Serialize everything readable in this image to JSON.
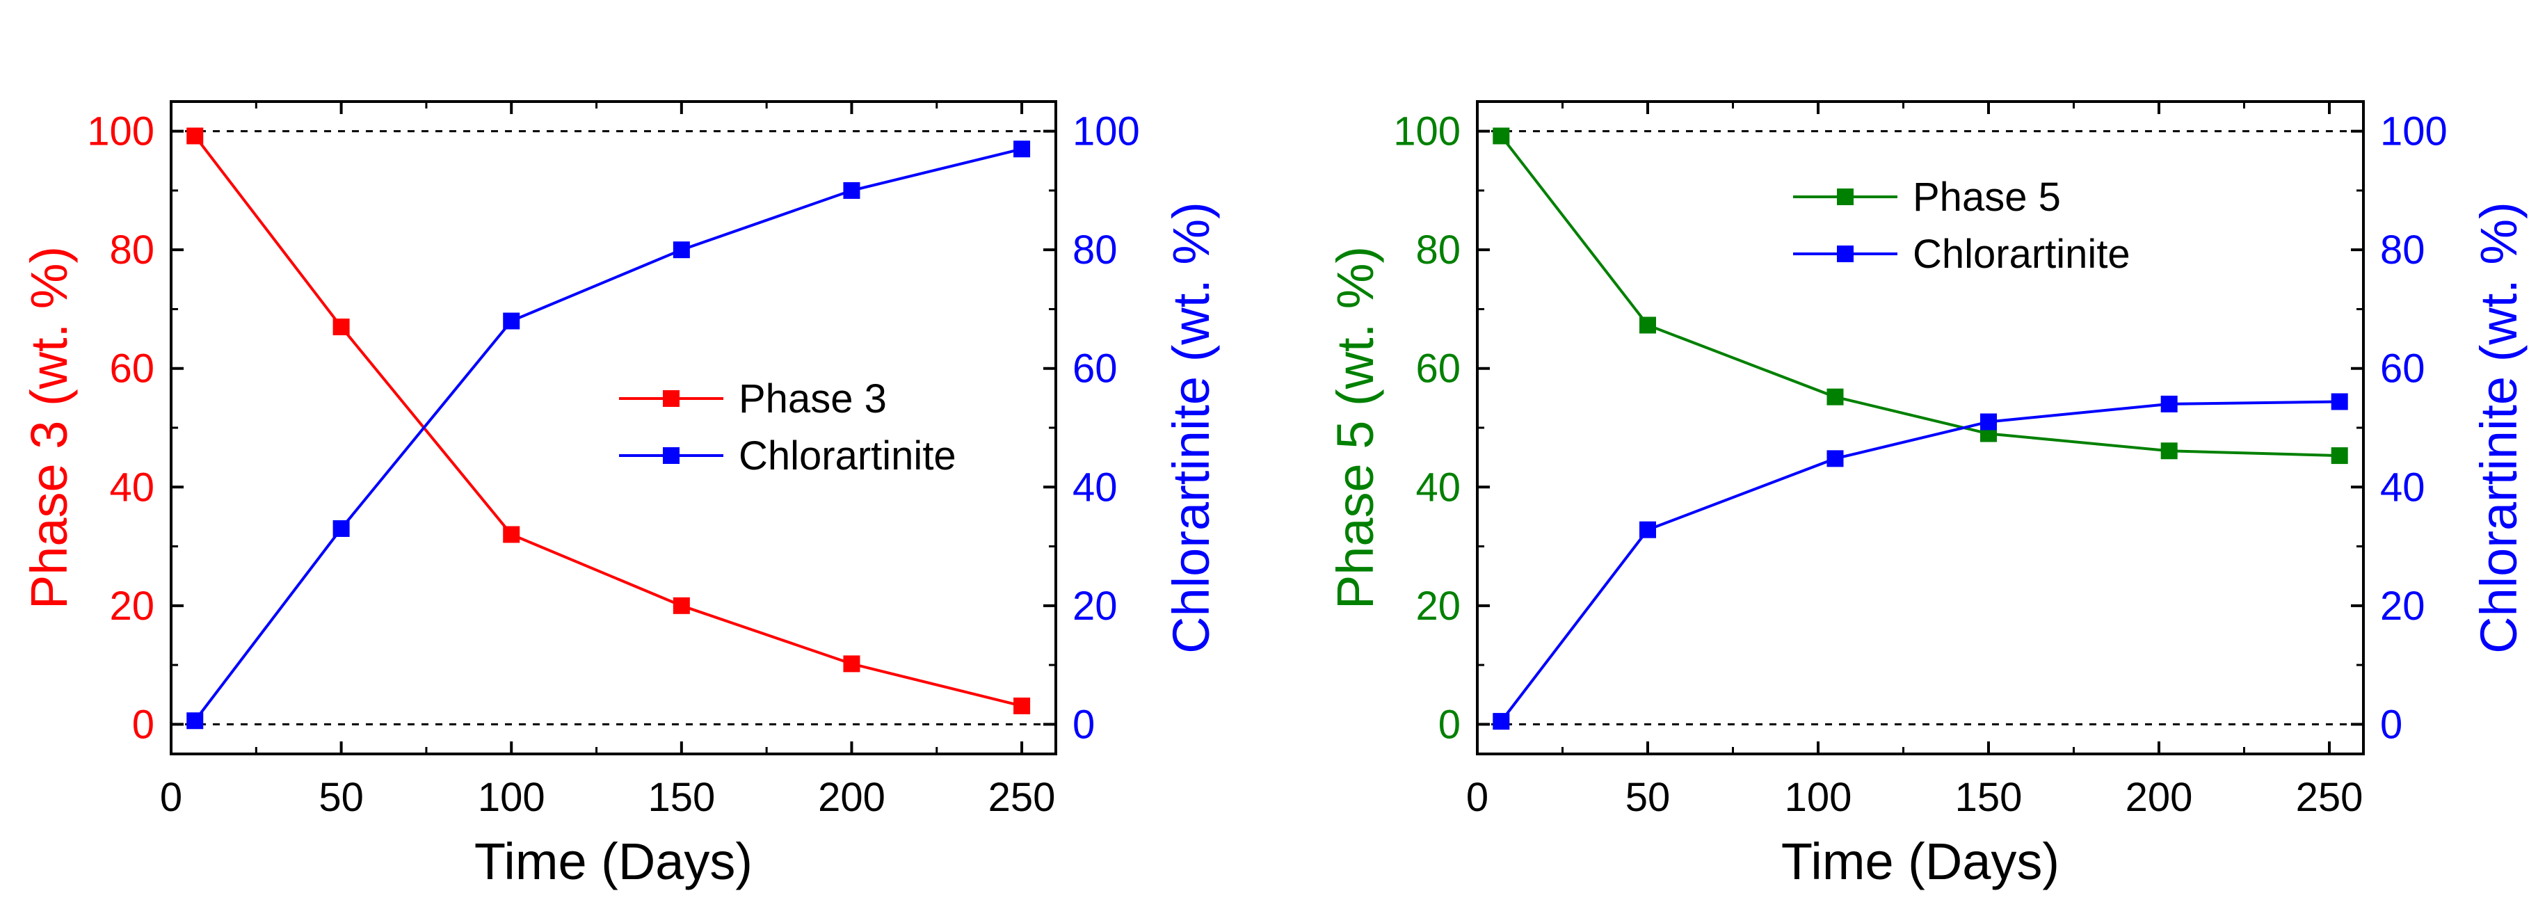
{
  "chart_data": [
    {
      "type": "line",
      "title": "",
      "xlabel": "Time (Days)",
      "ylabel_left": "Phase 3 (wt. %)",
      "ylabel_right": "Chlorartinite (wt. %)",
      "xlim": [
        0,
        260
      ],
      "ylim_left": [
        -5,
        105
      ],
      "ylim_right": [
        -5,
        105
      ],
      "xticks": [
        "0",
        "50",
        "100",
        "150",
        "200",
        "250"
      ],
      "yticks_left": [
        "0",
        "20",
        "40",
        "60",
        "80",
        "100"
      ],
      "yticks_right": [
        "0",
        "20",
        "40",
        "60",
        "80",
        "100"
      ],
      "reference_lines": [
        0,
        100
      ],
      "legend_position": "center-right",
      "left_axis_color": "#ff0000",
      "right_axis_color": "#0000ff",
      "series": [
        {
          "name": "Phase 3",
          "axis": "left",
          "color": "#ff0000",
          "x": [
            7,
            50,
            100,
            150,
            200,
            250
          ],
          "y": [
            99.2,
            67,
            32,
            20,
            10.2,
            3.1
          ]
        },
        {
          "name": "Chlorartinite",
          "axis": "right",
          "color": "#0000ff",
          "x": [
            7,
            50,
            100,
            150,
            200,
            250
          ],
          "y": [
            0.6,
            33,
            68,
            80,
            90,
            97
          ]
        }
      ]
    },
    {
      "type": "line",
      "title": "",
      "xlabel": "Time (Days)",
      "ylabel_left": "Phase 5 (wt. %)",
      "ylabel_right": "Chlorartinite (wt. %)",
      "xlim": [
        0,
        260
      ],
      "ylim_left": [
        -5,
        105
      ],
      "ylim_right": [
        -5,
        105
      ],
      "xticks": [
        "0",
        "50",
        "100",
        "150",
        "200",
        "250"
      ],
      "yticks_left": [
        "0",
        "20",
        "40",
        "60",
        "80",
        "100"
      ],
      "yticks_right": [
        "0",
        "20",
        "40",
        "60",
        "80",
        "100"
      ],
      "reference_lines": [
        0,
        100
      ],
      "legend_position": "top-center",
      "left_axis_color": "#008000",
      "right_axis_color": "#0000ff",
      "series": [
        {
          "name": "Phase 5",
          "axis": "left",
          "color": "#008000",
          "x": [
            7,
            50,
            105,
            150,
            203,
            253
          ],
          "y": [
            99.2,
            67.3,
            55.2,
            49,
            46.1,
            45.3
          ]
        },
        {
          "name": "Chlorartinite",
          "axis": "right",
          "color": "#0000ff",
          "x": [
            7,
            50,
            105,
            150,
            203,
            253
          ],
          "y": [
            0.5,
            32.8,
            44.8,
            51,
            54,
            54.4
          ]
        }
      ]
    }
  ]
}
